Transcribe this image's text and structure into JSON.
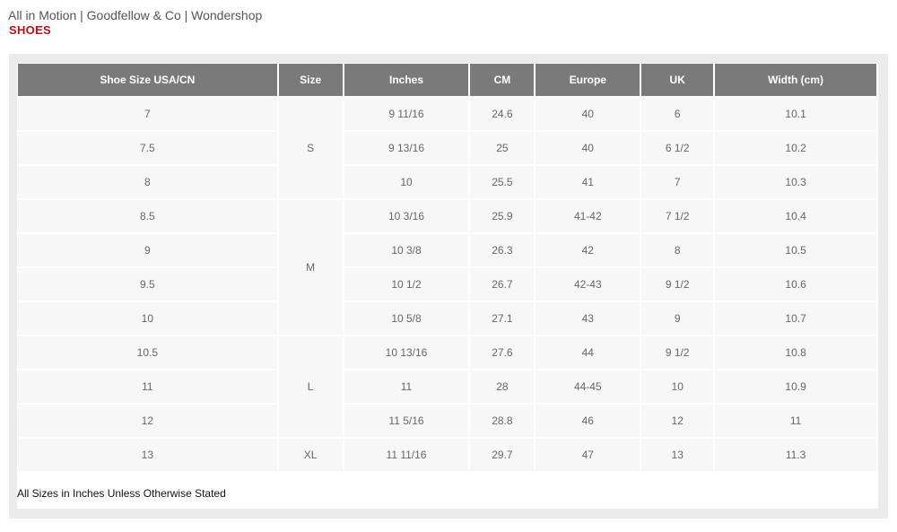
{
  "header": {
    "brands": "All in Motion | Goodfellow & Co | Wondershop",
    "category": "SHOES"
  },
  "table": {
    "columns": [
      "Shoe Size USA/CN",
      "Size",
      "Inches",
      "CM",
      "Europe",
      "UK",
      "Width (cm)"
    ],
    "size_groups": [
      {
        "label": "S",
        "rows": 3
      },
      {
        "label": "M",
        "rows": 4
      },
      {
        "label": "L",
        "rows": 3
      },
      {
        "label": "XL",
        "rows": 1
      }
    ],
    "rows": [
      {
        "usa": "7",
        "inches": "9 11/16",
        "cm": "24.6",
        "europe": "40",
        "uk": "6",
        "width": "10.1"
      },
      {
        "usa": "7.5",
        "inches": "9 13/16",
        "cm": "25",
        "europe": "40",
        "uk": "6 1/2",
        "width": "10.2"
      },
      {
        "usa": "8",
        "inches": "10",
        "cm": "25.5",
        "europe": "41",
        "uk": "7",
        "width": "10.3"
      },
      {
        "usa": "8.5",
        "inches": "10 3/16",
        "cm": "25.9",
        "europe": "41-42",
        "uk": "7 1/2",
        "width": "10.4"
      },
      {
        "usa": "9",
        "inches": "10 3/8",
        "cm": "26.3",
        "europe": "42",
        "uk": "8",
        "width": "10.5"
      },
      {
        "usa": "9.5",
        "inches": "10 1/2",
        "cm": "26.7",
        "europe": "42-43",
        "uk": "9 1/2",
        "width": "10.6"
      },
      {
        "usa": "10",
        "inches": "10 5/8",
        "cm": "27.1",
        "europe": "43",
        "uk": "9",
        "width": "10.7"
      },
      {
        "usa": "10.5",
        "inches": "10 13/16",
        "cm": "27.6",
        "europe": "44",
        "uk": "9 1/2",
        "width": "10.8"
      },
      {
        "usa": "11",
        "inches": "11",
        "cm": "28",
        "europe": "44-45",
        "uk": "10",
        "width": "10.9"
      },
      {
        "usa": "12",
        "inches": "11 5/16",
        "cm": "28.8",
        "europe": "46",
        "uk": "12",
        "width": "11"
      },
      {
        "usa": "13",
        "inches": "11 11/16",
        "cm": "29.7",
        "europe": "47",
        "uk": "13",
        "width": "11.3"
      }
    ]
  },
  "note": "All Sizes in Inches Unless Otherwise Stated"
}
